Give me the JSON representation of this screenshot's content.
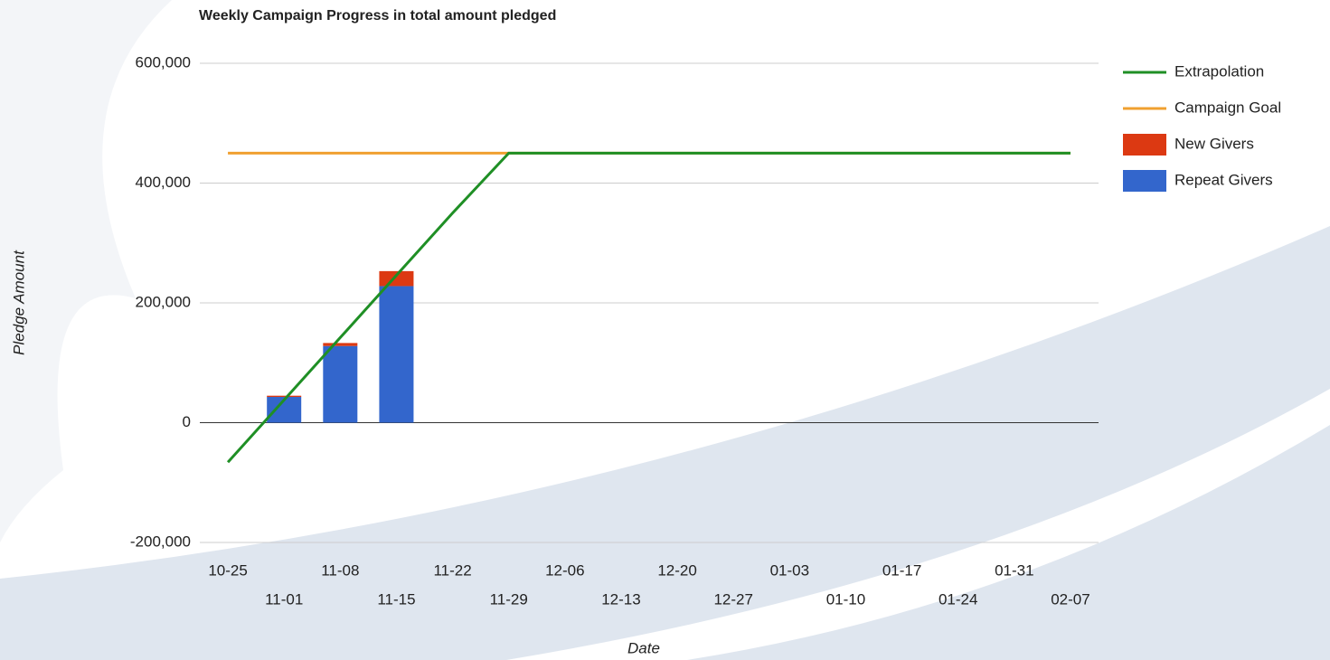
{
  "chart_data": {
    "type": "bar",
    "title": "Weekly Campaign Progress in total amount pledged",
    "x_label": "Date",
    "y_label": "Pledge Amount",
    "categories": [
      "10-25",
      "11-01",
      "11-08",
      "11-15",
      "11-22",
      "11-29",
      "12-06",
      "12-13",
      "12-20",
      "12-27",
      "01-03",
      "01-10",
      "01-17",
      "01-24",
      "01-31",
      "02-07"
    ],
    "series": [
      {
        "name": "Extrapolation",
        "type": "line",
        "color": "#1f8f25",
        "values": [
          -66000,
          38000,
          142000,
          246000,
          350000,
          450000,
          450000,
          450000,
          450000,
          450000,
          450000,
          450000,
          450000,
          450000,
          450000,
          450000
        ]
      },
      {
        "name": "Campaign Goal",
        "type": "line",
        "color": "#f0a030",
        "values": [
          450000,
          450000,
          450000,
          450000,
          450000,
          450000,
          450000,
          450000,
          450000,
          450000,
          450000,
          450000,
          450000,
          450000,
          450000,
          450000
        ]
      },
      {
        "name": "New Givers",
        "type": "bar",
        "color": "#dc3912",
        "values": [
          null,
          2000,
          5000,
          25000,
          null,
          null,
          null,
          null,
          null,
          null,
          null,
          null,
          null,
          null,
          null,
          null
        ]
      },
      {
        "name": "Repeat Givers",
        "type": "bar",
        "color": "#3366cc",
        "values": [
          null,
          43000,
          128000,
          228000,
          null,
          null,
          null,
          null,
          null,
          null,
          null,
          null,
          null,
          null,
          null,
          null
        ]
      }
    ],
    "ylim": [
      -200000,
      600000
    ],
    "yticks": [
      {
        "value": -200000,
        "label": "-200,000"
      },
      0,
      {
        "value": 200000,
        "label": "200,000"
      },
      {
        "value": 400000,
        "label": "400,000"
      },
      {
        "value": 600000,
        "label": "600,000"
      }
    ],
    "grid": true,
    "legend": "right"
  }
}
